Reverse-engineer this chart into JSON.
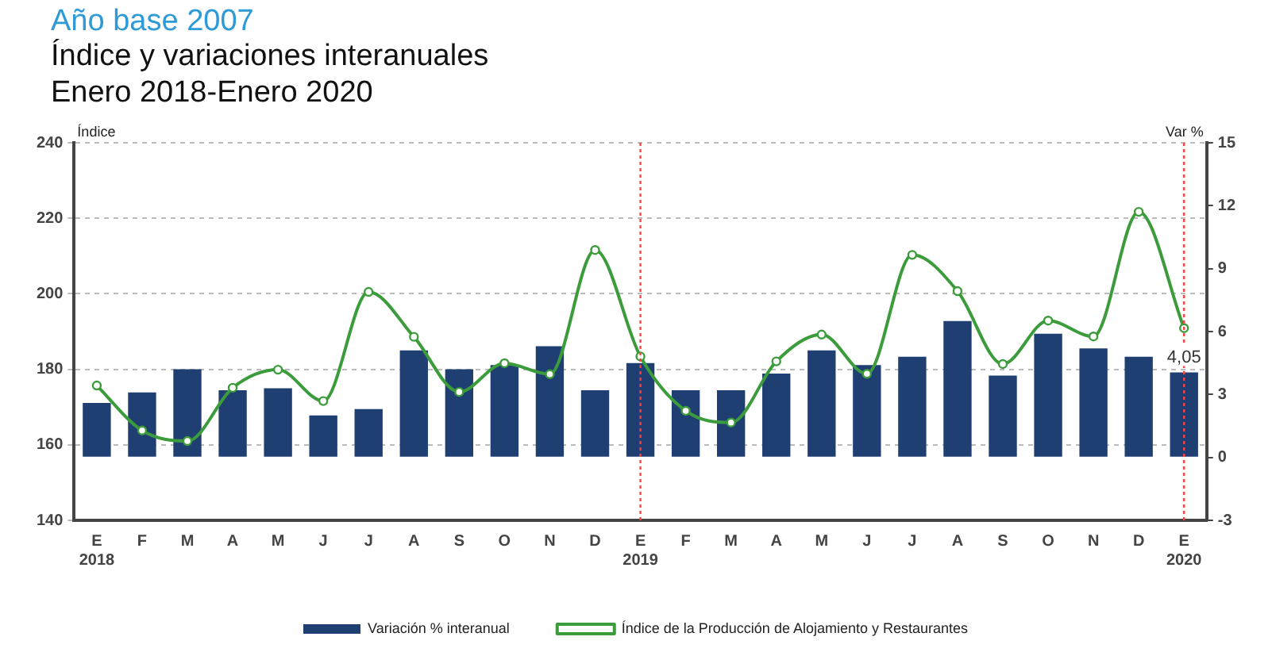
{
  "chart_data": {
    "type": "bar",
    "title": "Índice y variaciones interanuales",
    "subtitle": "Enero 2018-Enero 2020",
    "annotations": [
      "Año base 2007"
    ],
    "ylabel": "Índice",
    "y2label": "Var %",
    "categories": [
      "E\n2018",
      "F",
      "M",
      "A",
      "M",
      "J",
      "J",
      "A",
      "S",
      "O",
      "N",
      "D",
      "E\n2019",
      "F",
      "M",
      "A",
      "M",
      "J",
      "J",
      "A",
      "S",
      "O",
      "N",
      "D",
      "E\n2020"
    ],
    "series": [
      {
        "name": "Variación % interanual",
        "axis": "y2",
        "color": "#1f3f73",
        "values": [
          2.6,
          3.1,
          4.2,
          3.2,
          3.3,
          2.0,
          2.3,
          5.1,
          4.2,
          4.4,
          5.3,
          3.2,
          4.5,
          3.2,
          3.2,
          4.0,
          5.1,
          4.4,
          4.8,
          6.5,
          3.9,
          5.9,
          5.2,
          4.8,
          4.05
        ],
        "value_labels": [
          null,
          null,
          null,
          null,
          null,
          null,
          null,
          null,
          null,
          null,
          null,
          null,
          null,
          null,
          null,
          null,
          null,
          null,
          null,
          null,
          null,
          null,
          null,
          null,
          "4,05"
        ]
      },
      {
        "name": "Índice de la Producción de Alojamiento y Restaurantes",
        "type": "line",
        "color": "#3c9c3c",
        "marker": "circle",
        "values": [
          175.7,
          163.8,
          161.0,
          175.1,
          179.9,
          171.6,
          200.5,
          188.6,
          174.0,
          181.6,
          178.7,
          211.6,
          183.4,
          169.0,
          165.9,
          182.1,
          189.2,
          178.8,
          210.3,
          200.7,
          181.4,
          192.9,
          188.7,
          221.7,
          190.9
        ]
      }
    ],
    "ylim": [
      140,
      240
    ],
    "yticks": [
      140,
      160,
      180,
      200,
      220,
      240
    ],
    "y2lim": [
      -3,
      15
    ],
    "y2ticks": [
      -3,
      0,
      3,
      6,
      9,
      12,
      15
    ],
    "ref_lines": [
      {
        "axis": "x",
        "value": "E\n2019",
        "color": "#ff4040",
        "line_style": "dotted"
      },
      {
        "axis": "x",
        "value": "E\n2020",
        "color": "#ff4040",
        "line_style": "dotted"
      }
    ],
    "grid": "y",
    "legend": "bottom"
  }
}
